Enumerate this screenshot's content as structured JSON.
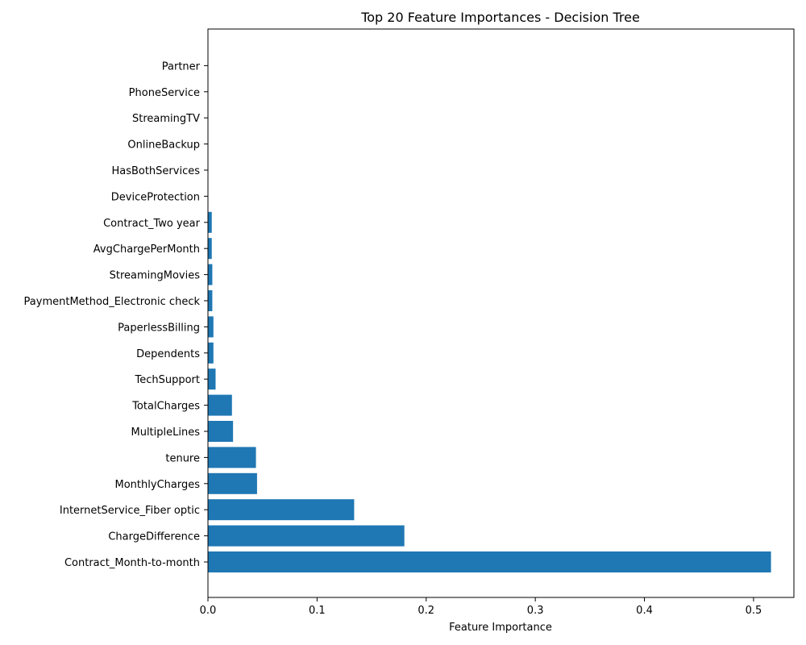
{
  "chart_data": {
    "type": "bar",
    "orientation": "horizontal",
    "title": "Top 20 Feature Importances - Decision Tree",
    "xlabel": "Feature Importance",
    "ylabel": "",
    "xlim": [
      0,
      0.537
    ],
    "xticks": [
      0.0,
      0.1,
      0.2,
      0.3,
      0.4,
      0.5
    ],
    "xtick_labels": [
      "0.0",
      "0.1",
      "0.2",
      "0.3",
      "0.4",
      "0.5"
    ],
    "grid": false,
    "bar_color": "#1f77b4",
    "categories": [
      "Contract_Month-to-month",
      "ChargeDifference",
      "InternetService_Fiber optic",
      "MonthlyCharges",
      "tenure",
      "MultipleLines",
      "TotalCharges",
      "TechSupport",
      "Dependents",
      "PaperlessBilling",
      "PaymentMethod_Electronic check",
      "StreamingMovies",
      "AvgChargePerMonth",
      "Contract_Two year",
      "DeviceProtection",
      "HasBothServices",
      "OnlineBackup",
      "StreamingTV",
      "PhoneService",
      "Partner"
    ],
    "values": [
      0.516,
      0.18,
      0.134,
      0.045,
      0.044,
      0.023,
      0.022,
      0.007,
      0.005,
      0.005,
      0.004,
      0.004,
      0.0035,
      0.0035,
      0.0,
      0.0,
      0.0,
      0.0,
      0.0,
      0.0
    ]
  }
}
